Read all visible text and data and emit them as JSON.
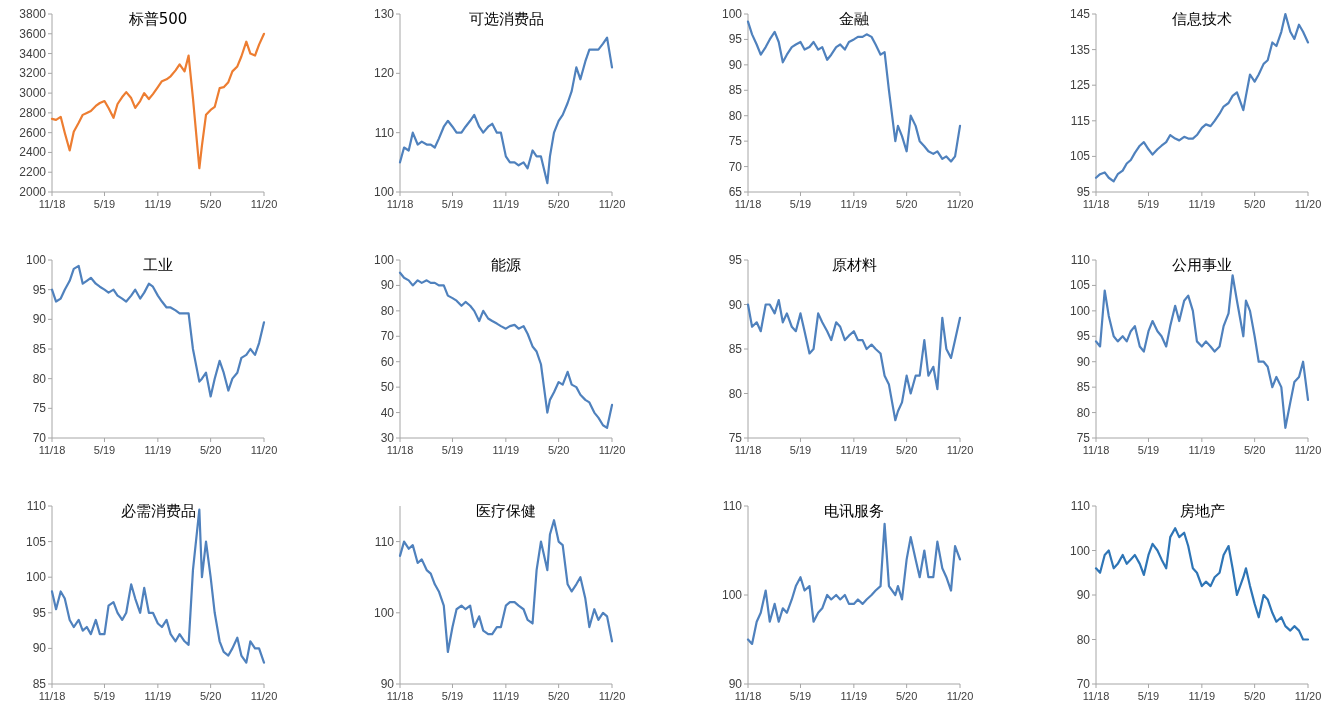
{
  "chart_data": [
    {
      "type": "line",
      "title": "标普500",
      "x": [
        "2018-11-01",
        "2018-11-15",
        "2018-12-01",
        "2018-12-15",
        "2019-01-01",
        "2019-01-15",
        "2019-02-01",
        "2019-02-15",
        "2019-03-01",
        "2019-03-15",
        "2019-04-01",
        "2019-04-15",
        "2019-05-01",
        "2019-05-15",
        "2019-06-01",
        "2019-06-15",
        "2019-07-01",
        "2019-07-15",
        "2019-08-01",
        "2019-08-15",
        "2019-09-01",
        "2019-09-15",
        "2019-10-01",
        "2019-10-15",
        "2019-11-01",
        "2019-11-15",
        "2019-12-01",
        "2019-12-15",
        "2020-01-01",
        "2020-01-15",
        "2020-02-01",
        "2020-02-15",
        "2020-03-01",
        "2020-03-23",
        "2020-04-01",
        "2020-04-15",
        "2020-05-01",
        "2020-05-15",
        "2020-06-01",
        "2020-06-15",
        "2020-07-01",
        "2020-07-15",
        "2020-08-01",
        "2020-08-15",
        "2020-09-01",
        "2020-09-15",
        "2020-10-01",
        "2020-10-15",
        "2020-11-01"
      ],
      "series": [
        {
          "color": "#ed7d31",
          "values": [
            2740,
            2730,
            2760,
            2600,
            2420,
            2610,
            2700,
            2780,
            2800,
            2820,
            2870,
            2900,
            2920,
            2850,
            2750,
            2890,
            2960,
            3010,
            2950,
            2850,
            2920,
            3000,
            2940,
            2990,
            3060,
            3120,
            3140,
            3170,
            3230,
            3290,
            3220,
            3380,
            2950,
            2240,
            2470,
            2780,
            2830,
            2860,
            3050,
            3060,
            3110,
            3220,
            3270,
            3370,
            3520,
            3400,
            3380,
            3490,
            3600
          ]
        }
      ],
      "xlim": [
        "2018-11-01",
        "2020-11-01"
      ],
      "xticks": [
        {
          "value": "2018-11-01",
          "label": "11/18"
        },
        {
          "value": "2019-05-01",
          "label": "5/19"
        },
        {
          "value": "2019-11-01",
          "label": "11/19"
        },
        {
          "value": "2020-05-01",
          "label": "5/20"
        },
        {
          "value": "2020-11-01",
          "label": "11/20"
        }
      ],
      "ylim": [
        2000,
        3800
      ],
      "yticks": [
        2000,
        2200,
        2400,
        2600,
        2800,
        3000,
        3200,
        3400,
        3600,
        3800
      ]
    },
    {
      "type": "line",
      "title": "可选消费品",
      "x": [
        "2018-11-01",
        "2018-11-15",
        "2018-12-01",
        "2018-12-15",
        "2019-01-01",
        "2019-01-15",
        "2019-02-01",
        "2019-02-15",
        "2019-03-01",
        "2019-03-15",
        "2019-04-01",
        "2019-04-15",
        "2019-05-01",
        "2019-05-15",
        "2019-06-01",
        "2019-06-15",
        "2019-07-01",
        "2019-07-15",
        "2019-08-01",
        "2019-08-15",
        "2019-09-01",
        "2019-09-15",
        "2019-10-01",
        "2019-10-15",
        "2019-11-01",
        "2019-11-15",
        "2019-12-01",
        "2019-12-15",
        "2020-01-01",
        "2020-01-15",
        "2020-02-01",
        "2020-02-15",
        "2020-03-01",
        "2020-03-23",
        "2020-04-01",
        "2020-04-15",
        "2020-05-01",
        "2020-05-15",
        "2020-06-01",
        "2020-06-15",
        "2020-07-01",
        "2020-07-15",
        "2020-08-01",
        "2020-08-15",
        "2020-09-01",
        "2020-09-15",
        "2020-10-01",
        "2020-10-15",
        "2020-11-01"
      ],
      "series": [
        {
          "color": "#4f81bd",
          "values": [
            105,
            107.5,
            107,
            110,
            108,
            108.5,
            108,
            108,
            107.5,
            109,
            111,
            112,
            111,
            110,
            110,
            111,
            112,
            113,
            111,
            110,
            111,
            111.5,
            110,
            110,
            106,
            105,
            105,
            104.5,
            105,
            104,
            107,
            106,
            106,
            101.5,
            106,
            110,
            112,
            113,
            115,
            117,
            121,
            119,
            122,
            124,
            124,
            124,
            125,
            126,
            121
          ]
        }
      ],
      "xlim": [
        "2018-11-01",
        "2020-11-01"
      ],
      "xticks": [
        {
          "value": "2018-11-01",
          "label": "11/18"
        },
        {
          "value": "2019-05-01",
          "label": "5/19"
        },
        {
          "value": "2019-11-01",
          "label": "11/19"
        },
        {
          "value": "2020-05-01",
          "label": "5/20"
        },
        {
          "value": "2020-11-01",
          "label": "11/20"
        }
      ],
      "ylim": [
        100,
        130
      ],
      "yticks": [
        100,
        110,
        120,
        130
      ]
    },
    {
      "type": "line",
      "title": "金融",
      "x": [
        "2018-11-01",
        "2018-11-15",
        "2018-12-01",
        "2018-12-15",
        "2019-01-01",
        "2019-01-15",
        "2019-02-01",
        "2019-02-15",
        "2019-03-01",
        "2019-03-15",
        "2019-04-01",
        "2019-04-15",
        "2019-05-01",
        "2019-05-15",
        "2019-06-01",
        "2019-06-15",
        "2019-07-01",
        "2019-07-15",
        "2019-08-01",
        "2019-08-15",
        "2019-09-01",
        "2019-09-15",
        "2019-10-01",
        "2019-10-15",
        "2019-11-01",
        "2019-11-15",
        "2019-12-01",
        "2019-12-15",
        "2020-01-01",
        "2020-01-15",
        "2020-02-01",
        "2020-02-15",
        "2020-03-01",
        "2020-03-23",
        "2020-04-01",
        "2020-04-15",
        "2020-05-01",
        "2020-05-15",
        "2020-06-01",
        "2020-06-15",
        "2020-07-01",
        "2020-07-15",
        "2020-08-01",
        "2020-08-15",
        "2020-09-01",
        "2020-09-15",
        "2020-10-01",
        "2020-10-15",
        "2020-11-01"
      ],
      "series": [
        {
          "color": "#4f81bd",
          "values": [
            98.5,
            96,
            94,
            92,
            93.5,
            95,
            96.5,
            94.5,
            90.5,
            92,
            93.5,
            94,
            94.5,
            93,
            93.5,
            94.5,
            93,
            93.5,
            91,
            92,
            93.5,
            94,
            93,
            94.5,
            95,
            95.5,
            95.5,
            96,
            95.5,
            94,
            92,
            92.5,
            85,
            75,
            78,
            76,
            73,
            80,
            78,
            75,
            74,
            73,
            72.5,
            73,
            71.5,
            72,
            71,
            72,
            78
          ]
        }
      ],
      "xlim": [
        "2018-11-01",
        "2020-11-01"
      ],
      "xticks": [
        {
          "value": "2018-11-01",
          "label": "11/18"
        },
        {
          "value": "2019-05-01",
          "label": "5/19"
        },
        {
          "value": "2019-11-01",
          "label": "11/19"
        },
        {
          "value": "2020-05-01",
          "label": "5/20"
        },
        {
          "value": "2020-11-01",
          "label": "11/20"
        }
      ],
      "ylim": [
        65,
        100
      ],
      "yticks": [
        65,
        70,
        75,
        80,
        85,
        90,
        95,
        100
      ]
    },
    {
      "type": "line",
      "title": "信息技术",
      "x": [
        "2018-11-01",
        "2018-11-15",
        "2018-12-01",
        "2018-12-15",
        "2019-01-01",
        "2019-01-15",
        "2019-02-01",
        "2019-02-15",
        "2019-03-01",
        "2019-03-15",
        "2019-04-01",
        "2019-04-15",
        "2019-05-01",
        "2019-05-15",
        "2019-06-01",
        "2019-06-15",
        "2019-07-01",
        "2019-07-15",
        "2019-08-01",
        "2019-08-15",
        "2019-09-01",
        "2019-09-15",
        "2019-10-01",
        "2019-10-15",
        "2019-11-01",
        "2019-11-15",
        "2019-12-01",
        "2019-12-15",
        "2020-01-01",
        "2020-01-15",
        "2020-02-01",
        "2020-02-15",
        "2020-03-01",
        "2020-03-23",
        "2020-04-01",
        "2020-04-15",
        "2020-05-01",
        "2020-05-15",
        "2020-06-01",
        "2020-06-15",
        "2020-07-01",
        "2020-07-15",
        "2020-08-01",
        "2020-08-15",
        "2020-09-01",
        "2020-09-15",
        "2020-10-01",
        "2020-10-15",
        "2020-11-01"
      ],
      "series": [
        {
          "color": "#4f81bd",
          "values": [
            99,
            100,
            100.5,
            99,
            98,
            100,
            101,
            103,
            104,
            106,
            108,
            109,
            107,
            105.5,
            107,
            108,
            109,
            111,
            110,
            109.5,
            110.5,
            110,
            110,
            111,
            113,
            114,
            113.5,
            115,
            117,
            119,
            120,
            122,
            123,
            118,
            122,
            128,
            126,
            128,
            131,
            132,
            137,
            136,
            140,
            145,
            140,
            138,
            142,
            140,
            137
          ]
        }
      ],
      "xlim": [
        "2018-11-01",
        "2020-11-01"
      ],
      "xticks": [
        {
          "value": "2018-11-01",
          "label": "11/18"
        },
        {
          "value": "2019-05-01",
          "label": "5/19"
        },
        {
          "value": "2019-11-01",
          "label": "11/19"
        },
        {
          "value": "2020-05-01",
          "label": "5/20"
        },
        {
          "value": "2020-11-01",
          "label": "11/20"
        }
      ],
      "ylim": [
        95,
        145
      ],
      "yticks": [
        95,
        105,
        115,
        125,
        135,
        145
      ]
    },
    {
      "type": "line",
      "title": "工业",
      "x": [
        "2018-11-01",
        "2018-11-15",
        "2018-12-01",
        "2018-12-15",
        "2019-01-01",
        "2019-01-15",
        "2019-02-01",
        "2019-02-15",
        "2019-03-01",
        "2019-03-15",
        "2019-04-01",
        "2019-04-15",
        "2019-05-01",
        "2019-05-15",
        "2019-06-01",
        "2019-06-15",
        "2019-07-01",
        "2019-07-15",
        "2019-08-01",
        "2019-08-15",
        "2019-09-01",
        "2019-09-15",
        "2019-10-01",
        "2019-10-15",
        "2019-11-01",
        "2019-11-15",
        "2019-12-01",
        "2019-12-15",
        "2020-01-01",
        "2020-01-15",
        "2020-02-01",
        "2020-02-15",
        "2020-03-01",
        "2020-03-23",
        "2020-04-01",
        "2020-04-15",
        "2020-05-01",
        "2020-05-15",
        "2020-06-01",
        "2020-06-15",
        "2020-07-01",
        "2020-07-15",
        "2020-08-01",
        "2020-08-15",
        "2020-09-01",
        "2020-09-15",
        "2020-10-01",
        "2020-10-15",
        "2020-11-01"
      ],
      "series": [
        {
          "color": "#4f81bd",
          "values": [
            95,
            93,
            93.5,
            95,
            96.5,
            98.5,
            99,
            96,
            96.5,
            97,
            96,
            95.5,
            95,
            94.5,
            95,
            94,
            93.5,
            93,
            94,
            95,
            93.5,
            94.5,
            96,
            95.5,
            94,
            93,
            92,
            92,
            91.5,
            91,
            91,
            91,
            85,
            79.5,
            80,
            81,
            77,
            80,
            83,
            81,
            78,
            80,
            81,
            83.5,
            84,
            85,
            84,
            86,
            89.5
          ]
        }
      ],
      "xlim": [
        "2018-11-01",
        "2020-11-01"
      ],
      "xticks": [
        {
          "value": "2018-11-01",
          "label": "11/18"
        },
        {
          "value": "2019-05-01",
          "label": "5/19"
        },
        {
          "value": "2019-11-01",
          "label": "11/19"
        },
        {
          "value": "2020-05-01",
          "label": "5/20"
        },
        {
          "value": "2020-11-01",
          "label": "11/20"
        }
      ],
      "ylim": [
        70,
        100
      ],
      "yticks": [
        70,
        75,
        80,
        85,
        90,
        95,
        100
      ]
    },
    {
      "type": "line",
      "title": "能源",
      "x": [
        "2018-11-01",
        "2018-11-15",
        "2018-12-01",
        "2018-12-15",
        "2019-01-01",
        "2019-01-15",
        "2019-02-01",
        "2019-02-15",
        "2019-03-01",
        "2019-03-15",
        "2019-04-01",
        "2019-04-15",
        "2019-05-01",
        "2019-05-15",
        "2019-06-01",
        "2019-06-15",
        "2019-07-01",
        "2019-07-15",
        "2019-08-01",
        "2019-08-15",
        "2019-09-01",
        "2019-09-15",
        "2019-10-01",
        "2019-10-15",
        "2019-11-01",
        "2019-11-15",
        "2019-12-01",
        "2019-12-15",
        "2020-01-01",
        "2020-01-15",
        "2020-02-01",
        "2020-02-15",
        "2020-03-01",
        "2020-03-23",
        "2020-04-01",
        "2020-04-15",
        "2020-05-01",
        "2020-05-15",
        "2020-06-01",
        "2020-06-15",
        "2020-07-01",
        "2020-07-15",
        "2020-08-01",
        "2020-08-15",
        "2020-09-01",
        "2020-09-15",
        "2020-10-01",
        "2020-10-15",
        "2020-11-01"
      ],
      "series": [
        {
          "color": "#4f81bd",
          "values": [
            95,
            93,
            92,
            90,
            92,
            91,
            92,
            91,
            91,
            90,
            90,
            86,
            85,
            84,
            82,
            83.5,
            82,
            80,
            76,
            80,
            77,
            76,
            75,
            74,
            73,
            74,
            74.5,
            73,
            74,
            71,
            66,
            64,
            59,
            40,
            45,
            48,
            52,
            51,
            56,
            51,
            50,
            47,
            45,
            44,
            40,
            38,
            35,
            34,
            43
          ]
        }
      ],
      "xlim": [
        "2018-11-01",
        "2020-11-01"
      ],
      "xticks": [
        {
          "value": "2018-11-01",
          "label": "11/18"
        },
        {
          "value": "2019-05-01",
          "label": "5/19"
        },
        {
          "value": "2019-11-01",
          "label": "11/19"
        },
        {
          "value": "2020-05-01",
          "label": "5/20"
        },
        {
          "value": "2020-11-01",
          "label": "11/20"
        }
      ],
      "ylim": [
        30,
        100
      ],
      "yticks": [
        30,
        40,
        50,
        60,
        70,
        80,
        90,
        100
      ]
    },
    {
      "type": "line",
      "title": "原材料",
      "x": [
        "2018-11-01",
        "2018-11-15",
        "2018-12-01",
        "2018-12-15",
        "2019-01-01",
        "2019-01-15",
        "2019-02-01",
        "2019-02-15",
        "2019-03-01",
        "2019-03-15",
        "2019-04-01",
        "2019-04-15",
        "2019-05-01",
        "2019-05-15",
        "2019-06-01",
        "2019-06-15",
        "2019-07-01",
        "2019-07-15",
        "2019-08-01",
        "2019-08-15",
        "2019-09-01",
        "2019-09-15",
        "2019-10-01",
        "2019-10-15",
        "2019-11-01",
        "2019-11-15",
        "2019-12-01",
        "2019-12-15",
        "2020-01-01",
        "2020-01-15",
        "2020-02-01",
        "2020-02-15",
        "2020-03-01",
        "2020-03-23",
        "2020-04-01",
        "2020-04-15",
        "2020-05-01",
        "2020-05-15",
        "2020-06-01",
        "2020-06-15",
        "2020-07-01",
        "2020-07-15",
        "2020-08-01",
        "2020-08-15",
        "2020-09-01",
        "2020-09-15",
        "2020-10-01",
        "2020-10-15",
        "2020-11-01"
      ],
      "series": [
        {
          "color": "#4f81bd",
          "values": [
            90,
            87.5,
            88,
            87,
            90,
            90,
            89,
            90.5,
            88,
            89,
            87.5,
            87,
            89,
            87,
            84.5,
            85,
            89,
            88,
            87,
            86,
            88,
            87.5,
            86,
            86.5,
            87,
            86,
            86,
            85,
            85.5,
            85,
            84.5,
            82,
            81,
            77,
            78,
            79,
            82,
            80,
            82,
            82,
            86,
            82,
            83,
            80.5,
            88.5,
            85,
            84,
            86,
            88.5
          ]
        }
      ],
      "xlim": [
        "2018-11-01",
        "2020-11-01"
      ],
      "xticks": [
        {
          "value": "2018-11-01",
          "label": "11/18"
        },
        {
          "value": "2019-05-01",
          "label": "5/19"
        },
        {
          "value": "2019-11-01",
          "label": "11/19"
        },
        {
          "value": "2020-05-01",
          "label": "5/20"
        },
        {
          "value": "2020-11-01",
          "label": "11/20"
        }
      ],
      "ylim": [
        75,
        95
      ],
      "yticks": [
        75,
        80,
        85,
        90,
        95
      ]
    },
    {
      "type": "line",
      "title": "公用事业",
      "x": [
        "2018-11-01",
        "2018-11-15",
        "2018-12-01",
        "2018-12-15",
        "2019-01-01",
        "2019-01-15",
        "2019-02-01",
        "2019-02-15",
        "2019-03-01",
        "2019-03-15",
        "2019-04-01",
        "2019-04-15",
        "2019-05-01",
        "2019-05-15",
        "2019-06-01",
        "2019-06-15",
        "2019-07-01",
        "2019-07-15",
        "2019-08-01",
        "2019-08-15",
        "2019-09-01",
        "2019-09-15",
        "2019-10-01",
        "2019-10-15",
        "2019-11-01",
        "2019-11-15",
        "2019-12-01",
        "2019-12-15",
        "2020-01-01",
        "2020-01-15",
        "2020-02-01",
        "2020-02-15",
        "2020-03-01",
        "2020-03-23",
        "2020-04-01",
        "2020-04-15",
        "2020-05-01",
        "2020-05-15",
        "2020-06-01",
        "2020-06-15",
        "2020-07-01",
        "2020-07-15",
        "2020-08-01",
        "2020-08-15",
        "2020-09-01",
        "2020-09-15",
        "2020-10-01",
        "2020-10-15",
        "2020-11-01"
      ],
      "series": [
        {
          "color": "#4f81bd",
          "values": [
            94,
            93,
            104,
            99,
            95,
            94,
            95,
            94,
            96,
            97,
            93,
            92,
            96,
            98,
            96,
            95,
            93,
            97,
            101,
            98,
            102,
            103,
            100,
            94,
            93,
            94,
            93,
            92,
            93,
            97,
            99.5,
            107,
            102,
            95,
            102,
            100,
            95,
            90,
            90,
            89,
            85,
            87,
            85,
            77,
            82,
            86,
            87,
            90,
            82.5
          ]
        }
      ],
      "xlim": [
        "2018-11-01",
        "2020-11-01"
      ],
      "xticks": [
        {
          "value": "2018-11-01",
          "label": "11/18"
        },
        {
          "value": "2019-05-01",
          "label": "5/19"
        },
        {
          "value": "2019-11-01",
          "label": "11/19"
        },
        {
          "value": "2020-05-01",
          "label": "5/20"
        },
        {
          "value": "2020-11-01",
          "label": "11/20"
        }
      ],
      "ylim": [
        75,
        110
      ],
      "yticks": [
        75,
        80,
        85,
        90,
        95,
        100,
        105,
        110
      ]
    },
    {
      "type": "line",
      "title": "必需消费品",
      "x": [
        "2018-11-01",
        "2018-11-15",
        "2018-12-01",
        "2018-12-15",
        "2019-01-01",
        "2019-01-15",
        "2019-02-01",
        "2019-02-15",
        "2019-03-01",
        "2019-03-15",
        "2019-04-01",
        "2019-04-15",
        "2019-05-01",
        "2019-05-15",
        "2019-06-01",
        "2019-06-15",
        "2019-07-01",
        "2019-07-15",
        "2019-08-01",
        "2019-08-15",
        "2019-09-01",
        "2019-09-15",
        "2019-10-01",
        "2019-10-15",
        "2019-11-01",
        "2019-11-15",
        "2019-12-01",
        "2019-12-15",
        "2020-01-01",
        "2020-01-15",
        "2020-02-01",
        "2020-02-15",
        "2020-03-01",
        "2020-03-23",
        "2020-04-01",
        "2020-04-15",
        "2020-05-01",
        "2020-05-15",
        "2020-06-01",
        "2020-06-15",
        "2020-07-01",
        "2020-07-15",
        "2020-08-01",
        "2020-08-15",
        "2020-09-01",
        "2020-09-15",
        "2020-10-01",
        "2020-10-15",
        "2020-11-01"
      ],
      "series": [
        {
          "color": "#4f81bd",
          "values": [
            98,
            95.5,
            98,
            97,
            94,
            93,
            94,
            92.5,
            93,
            92,
            94,
            92,
            92,
            96,
            96.5,
            95,
            94,
            95,
            99,
            97,
            95,
            98.5,
            95,
            95,
            93.5,
            93,
            94,
            92,
            91,
            92,
            91,
            90.5,
            101,
            109.5,
            100,
            105,
            100,
            95,
            91,
            89.5,
            89,
            90,
            91.5,
            89,
            88,
            91,
            90,
            90,
            88
          ]
        }
      ],
      "xlim": [
        "2018-11-01",
        "2020-11-01"
      ],
      "xticks": [
        {
          "value": "2018-11-01",
          "label": "11/18"
        },
        {
          "value": "2019-05-01",
          "label": "5/19"
        },
        {
          "value": "2019-11-01",
          "label": "11/19"
        },
        {
          "value": "2020-05-01",
          "label": "5/20"
        },
        {
          "value": "2020-11-01",
          "label": "11/20"
        }
      ],
      "ylim": [
        85,
        110
      ],
      "yticks": [
        85,
        90,
        95,
        100,
        105,
        110
      ]
    },
    {
      "type": "line",
      "title": "医疗保健",
      "x": [
        "2018-11-01",
        "2018-11-15",
        "2018-12-01",
        "2018-12-15",
        "2019-01-01",
        "2019-01-15",
        "2019-02-01",
        "2019-02-15",
        "2019-03-01",
        "2019-03-15",
        "2019-04-01",
        "2019-04-15",
        "2019-05-01",
        "2019-05-15",
        "2019-06-01",
        "2019-06-15",
        "2019-07-01",
        "2019-07-15",
        "2019-08-01",
        "2019-08-15",
        "2019-09-01",
        "2019-09-15",
        "2019-10-01",
        "2019-10-15",
        "2019-11-01",
        "2019-11-15",
        "2019-12-01",
        "2019-12-15",
        "2020-01-01",
        "2020-01-15",
        "2020-02-01",
        "2020-02-15",
        "2020-03-01",
        "2020-03-23",
        "2020-04-01",
        "2020-04-15",
        "2020-05-01",
        "2020-05-15",
        "2020-06-01",
        "2020-06-15",
        "2020-07-01",
        "2020-07-15",
        "2020-08-01",
        "2020-08-15",
        "2020-09-01",
        "2020-09-15",
        "2020-10-01",
        "2020-10-15",
        "2020-11-01"
      ],
      "series": [
        {
          "color": "#4f81bd",
          "values": [
            108,
            110,
            109,
            109.5,
            107,
            107.5,
            106,
            105.5,
            104,
            103,
            101,
            94.5,
            98,
            100.5,
            101,
            100.5,
            101,
            98,
            99.5,
            97.5,
            97,
            97,
            98,
            98,
            101,
            101.5,
            101.5,
            101,
            100.5,
            99,
            98.5,
            106,
            110,
            106,
            111,
            113,
            110,
            109.5,
            104,
            103,
            104,
            105,
            102,
            98,
            100.5,
            99,
            100,
            99.5,
            96
          ]
        }
      ],
      "xlim": [
        "2018-11-01",
        "2020-11-01"
      ],
      "xticks": [
        {
          "value": "2018-11-01",
          "label": "11/18"
        },
        {
          "value": "2019-05-01",
          "label": "5/19"
        },
        {
          "value": "2019-11-01",
          "label": "11/19"
        },
        {
          "value": "2020-05-01",
          "label": "5/20"
        },
        {
          "value": "2020-11-01",
          "label": "11/20"
        }
      ],
      "ylim": [
        90,
        115
      ],
      "yticks": [
        90,
        100,
        110
      ]
    },
    {
      "type": "line",
      "title": "电讯服务",
      "x": [
        "2018-11-01",
        "2018-11-15",
        "2018-12-01",
        "2018-12-15",
        "2019-01-01",
        "2019-01-15",
        "2019-02-01",
        "2019-02-15",
        "2019-03-01",
        "2019-03-15",
        "2019-04-01",
        "2019-04-15",
        "2019-05-01",
        "2019-05-15",
        "2019-06-01",
        "2019-06-15",
        "2019-07-01",
        "2019-07-15",
        "2019-08-01",
        "2019-08-15",
        "2019-09-01",
        "2019-09-15",
        "2019-10-01",
        "2019-10-15",
        "2019-11-01",
        "2019-11-15",
        "2019-12-01",
        "2019-12-15",
        "2020-01-01",
        "2020-01-15",
        "2020-02-01",
        "2020-02-15",
        "2020-03-01",
        "2020-03-23",
        "2020-04-01",
        "2020-04-15",
        "2020-05-01",
        "2020-05-15",
        "2020-06-01",
        "2020-06-15",
        "2020-07-01",
        "2020-07-15",
        "2020-08-01",
        "2020-08-15",
        "2020-09-01",
        "2020-09-15",
        "2020-10-01",
        "2020-10-15",
        "2020-11-01"
      ],
      "series": [
        {
          "color": "#4f81bd",
          "values": [
            95,
            94.5,
            97,
            98,
            100.5,
            97,
            99,
            97,
            98.5,
            98,
            99.5,
            101,
            102,
            100.5,
            101,
            97,
            98,
            98.5,
            100,
            99.5,
            100,
            99.5,
            100,
            99,
            99,
            99.5,
            99,
            99.5,
            100,
            100.5,
            101,
            108,
            101,
            100,
            101,
            99.5,
            104,
            106.5,
            104,
            102,
            105,
            102,
            102,
            106,
            103,
            102,
            100.5,
            105.5,
            104
          ]
        }
      ],
      "xlim": [
        "2018-11-01",
        "2020-11-01"
      ],
      "xticks": [
        {
          "value": "2018-11-01",
          "label": "11/18"
        },
        {
          "value": "2019-05-01",
          "label": "5/19"
        },
        {
          "value": "2019-11-01",
          "label": "11/19"
        },
        {
          "value": "2020-05-01",
          "label": "5/20"
        },
        {
          "value": "2020-11-01",
          "label": "11/20"
        }
      ],
      "ylim": [
        90,
        110
      ],
      "yticks": [
        90,
        100,
        110
      ]
    },
    {
      "type": "line",
      "title": "房地产",
      "x": [
        "2018-11-01",
        "2018-11-15",
        "2018-12-01",
        "2018-12-15",
        "2019-01-01",
        "2019-01-15",
        "2019-02-01",
        "2019-02-15",
        "2019-03-01",
        "2019-03-15",
        "2019-04-01",
        "2019-04-15",
        "2019-05-01",
        "2019-05-15",
        "2019-06-01",
        "2019-06-15",
        "2019-07-01",
        "2019-07-15",
        "2019-08-01",
        "2019-08-15",
        "2019-09-01",
        "2019-09-15",
        "2019-10-01",
        "2019-10-15",
        "2019-11-01",
        "2019-11-15",
        "2019-12-01",
        "2019-12-15",
        "2020-01-01",
        "2020-01-15",
        "2020-02-01",
        "2020-02-15",
        "2020-03-01",
        "2020-03-23",
        "2020-04-01",
        "2020-04-15",
        "2020-05-01",
        "2020-05-15",
        "2020-06-01",
        "2020-06-15",
        "2020-07-01",
        "2020-07-15",
        "2020-08-01",
        "2020-08-15",
        "2020-09-01",
        "2020-09-15",
        "2020-10-01",
        "2020-10-15",
        "2020-11-01"
      ],
      "series": [
        {
          "color": "#2e75b6",
          "values": [
            96,
            95,
            99,
            100,
            96,
            97,
            99,
            97,
            98,
            99,
            97,
            94.5,
            99,
            101.5,
            100,
            98,
            96,
            103,
            105,
            103,
            104,
            101,
            96,
            95,
            92,
            93,
            92,
            94,
            95,
            99,
            101,
            96,
            90,
            94,
            96,
            92,
            88,
            85,
            90,
            89,
            86,
            84,
            85,
            83,
            82,
            83,
            82,
            80,
            80
          ]
        }
      ],
      "xlim": [
        "2018-11-01",
        "2020-11-01"
      ],
      "xticks": [
        {
          "value": "2018-11-01",
          "label": "11/18"
        },
        {
          "value": "2019-05-01",
          "label": "5/19"
        },
        {
          "value": "2019-11-01",
          "label": "11/19"
        },
        {
          "value": "2020-05-01",
          "label": "5/20"
        },
        {
          "value": "2020-11-01",
          "label": "11/20"
        }
      ],
      "ylim": [
        70,
        110
      ],
      "yticks": [
        70,
        80,
        90,
        100,
        110
      ]
    }
  ]
}
